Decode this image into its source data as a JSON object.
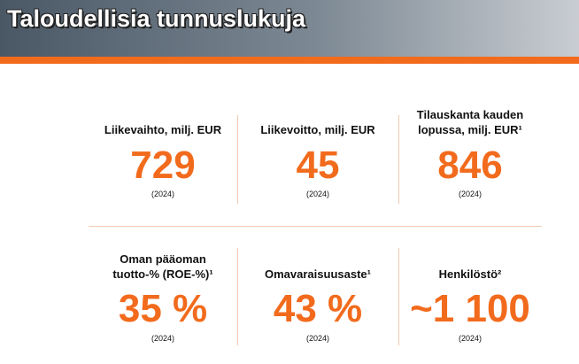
{
  "header": {
    "title": "Taloudellisia tunnuslukuja"
  },
  "kpis": [
    {
      "label": [
        "Liikevaihto, milj. EUR"
      ],
      "value": "729",
      "year": "(2024)"
    },
    {
      "label": [
        "Liikevoitto, milj. EUR"
      ],
      "value": "45",
      "year": "(2024)"
    },
    {
      "label": [
        "Tilauskanta kauden",
        "lopussa, milj. EUR¹"
      ],
      "value": "846",
      "year": "(2024)"
    },
    {
      "label": [
        "Oman pääoman",
        "tuotto-% (ROE-%)¹"
      ],
      "value": "35 %",
      "year": "(2024)"
    },
    {
      "label": [
        "Omavaraisuusaste¹"
      ],
      "value": "43 %",
      "year": "(2024)"
    },
    {
      "label": [
        "Henkilöstö²"
      ],
      "value": "~1 100",
      "year": "(2024)"
    }
  ]
}
